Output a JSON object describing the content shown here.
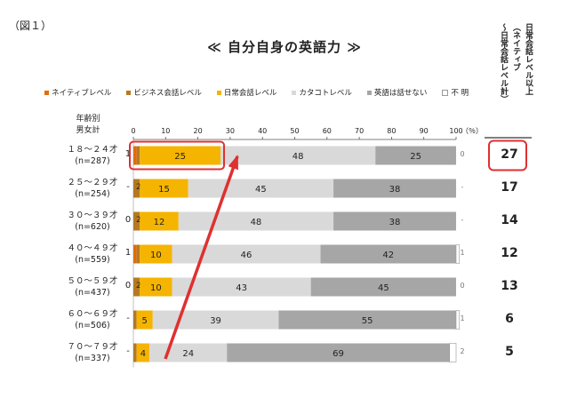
{
  "figure_label": "（図１）",
  "title": "≪ 自分自身の英語力 ≫",
  "colors": {
    "native": "#E36C0A",
    "business": "#B57A21",
    "daily": "#F5B400",
    "katakana": "#D9D9D9",
    "nospeak": "#A6A6A6",
    "unknown": "#FFFFFF",
    "highlight": "#E03030"
  },
  "row_header": [
    "年齢別",
    "男女計"
  ],
  "side_label": {
    "col1": "日常会話レベル以上",
    "col2": "（ネイティブ",
    "col3": "〜日常会話レベル計）"
  },
  "chart_data": {
    "type": "bar",
    "stacked": true,
    "orientation": "horizontal",
    "unit": "（％）",
    "xlim": [
      0,
      100
    ],
    "ticks": [
      "0",
      "10",
      "20",
      "30",
      "40",
      "50",
      "60",
      "70",
      "80",
      "90",
      "100"
    ],
    "legend_position": "top",
    "categories": [
      {
        "age": "１８〜２４才",
        "n": "(n=287)"
      },
      {
        "age": "２５〜２９才",
        "n": "(n=254)"
      },
      {
        "age": "３０〜３９才",
        "n": "(n=620)"
      },
      {
        "age": "４０〜４９才",
        "n": "(n=559)"
      },
      {
        "age": "５０〜５９才",
        "n": "(n=437)"
      },
      {
        "age": "６０〜６９才",
        "n": "(n=506)"
      },
      {
        "age": "７０〜７９才",
        "n": "(n=337)"
      }
    ],
    "series": [
      {
        "name": "ネイティブレベル",
        "key": "native",
        "values": [
          1,
          0,
          0,
          1,
          0,
          0,
          0
        ],
        "labels": [
          "1",
          "-",
          "0",
          "1",
          "0",
          "-",
          "-"
        ]
      },
      {
        "name": "ビジネス会話レベル",
        "key": "business",
        "values": [
          1,
          2,
          2,
          1,
          2,
          1,
          1
        ],
        "labels": [
          "1",
          "2",
          "2",
          "1",
          "2",
          "1",
          "1"
        ]
      },
      {
        "name": "日常会話レベル",
        "key": "daily",
        "values": [
          25,
          15,
          12,
          10,
          10,
          5,
          4
        ],
        "labels": [
          "25",
          "15",
          "12",
          "10",
          "10",
          "5",
          "4"
        ]
      },
      {
        "name": "カタコトレベル",
        "key": "katakana",
        "values": [
          48,
          45,
          48,
          46,
          43,
          39,
          24
        ],
        "labels": [
          "48",
          "45",
          "48",
          "46",
          "43",
          "39",
          "24"
        ]
      },
      {
        "name": "英語は話せない",
        "key": "nospeak",
        "values": [
          25,
          38,
          38,
          42,
          45,
          55,
          69
        ],
        "labels": [
          "25",
          "38",
          "38",
          "42",
          "45",
          "55",
          "69"
        ]
      },
      {
        "name": "不 明",
        "key": "unknown",
        "values": [
          0,
          0,
          0,
          1,
          0,
          1,
          2
        ],
        "labels": [
          "0",
          "-",
          "-",
          "1",
          "0",
          "1",
          "2"
        ]
      }
    ],
    "side_totals": [
      "27",
      "17",
      "14",
      "12",
      "13",
      "6",
      "5"
    ]
  }
}
